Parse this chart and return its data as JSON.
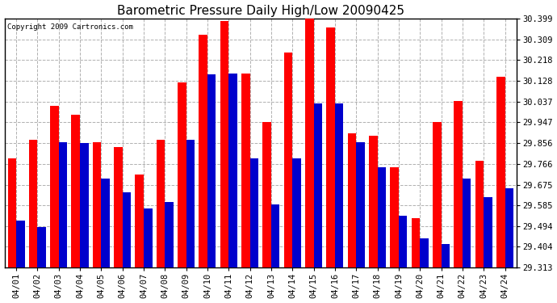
{
  "title": "Barometric Pressure Daily High/Low 20090425",
  "copyright": "Copyright 2009 Cartronics.com",
  "dates": [
    "04/01",
    "04/02",
    "04/03",
    "04/04",
    "04/05",
    "04/06",
    "04/07",
    "04/08",
    "04/09",
    "04/10",
    "04/11",
    "04/12",
    "04/13",
    "04/14",
    "04/15",
    "04/16",
    "04/17",
    "04/18",
    "04/19",
    "04/20",
    "04/21",
    "04/22",
    "04/23",
    "04/24"
  ],
  "highs": [
    29.79,
    29.87,
    30.02,
    29.98,
    29.86,
    29.84,
    29.72,
    29.87,
    30.12,
    30.33,
    30.39,
    30.16,
    29.95,
    30.25,
    30.399,
    30.36,
    29.9,
    29.89,
    29.75,
    29.53,
    29.95,
    30.04,
    29.78,
    30.145
  ],
  "lows": [
    29.52,
    29.49,
    29.86,
    29.855,
    29.7,
    29.64,
    29.57,
    29.6,
    29.87,
    30.155,
    30.16,
    29.79,
    29.59,
    29.79,
    30.03,
    30.03,
    29.86,
    29.75,
    29.538,
    29.44,
    29.415,
    29.7,
    29.62,
    29.66
  ],
  "ylim_min": 29.313,
  "ylim_max": 30.399,
  "yticks": [
    29.313,
    29.404,
    29.494,
    29.585,
    29.675,
    29.766,
    29.856,
    29.947,
    30.037,
    30.128,
    30.218,
    30.309,
    30.399
  ],
  "high_color": "#ff0000",
  "low_color": "#0000cc",
  "bg_color": "#ffffff",
  "grid_color": "#b0b0b0",
  "title_fontsize": 11,
  "tick_fontsize": 7.5,
  "copyright_fontsize": 6.5
}
